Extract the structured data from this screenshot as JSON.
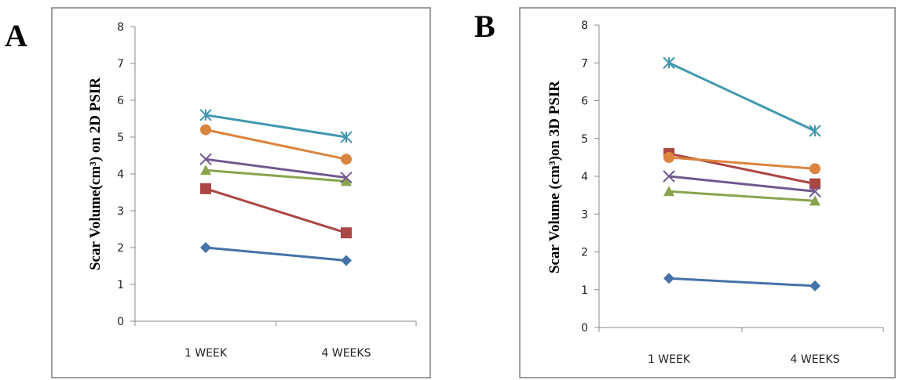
{
  "panels": [
    {
      "letter": "A"
    },
    {
      "letter": "B"
    }
  ],
  "chart_data": [
    {
      "type": "line",
      "panel": "A",
      "ylabel": "Scar Volume(cm³) on 2D PSIR",
      "categories": [
        "1 WEEK",
        "4 WEEKS"
      ],
      "ylim": [
        0,
        8
      ],
      "yticks": [
        0,
        1,
        2,
        3,
        4,
        5,
        6,
        7,
        8
      ],
      "series": [
        {
          "values": [
            2.0,
            1.65
          ],
          "color": "#4572A7",
          "marker": "diamond"
        },
        {
          "values": [
            3.6,
            2.4
          ],
          "color": "#AA4643",
          "marker": "square"
        },
        {
          "values": [
            4.1,
            3.8
          ],
          "color": "#89A54E",
          "marker": "triangle"
        },
        {
          "values": [
            4.4,
            3.9
          ],
          "color": "#71588F",
          "marker": "x"
        },
        {
          "values": [
            5.6,
            5.0
          ],
          "color": "#4198AF",
          "marker": "star"
        },
        {
          "values": [
            5.2,
            4.4
          ],
          "color": "#DB843D",
          "marker": "circle"
        }
      ]
    },
    {
      "type": "line",
      "panel": "B",
      "ylabel": "Scar Volume (cm³)on 3D PSIR",
      "categories": [
        "1 WEEK",
        "4 WEEKS"
      ],
      "ylim": [
        0,
        8
      ],
      "yticks": [
        0,
        1,
        2,
        3,
        4,
        5,
        6,
        7,
        8
      ],
      "series": [
        {
          "values": [
            1.3,
            1.1
          ],
          "color": "#4572A7",
          "marker": "diamond"
        },
        {
          "values": [
            4.6,
            3.8
          ],
          "color": "#AA4643",
          "marker": "square"
        },
        {
          "values": [
            3.6,
            3.35
          ],
          "color": "#89A54E",
          "marker": "triangle"
        },
        {
          "values": [
            4.0,
            3.6
          ],
          "color": "#71588F",
          "marker": "x"
        },
        {
          "values": [
            7.0,
            5.2
          ],
          "color": "#4198AF",
          "marker": "star"
        },
        {
          "values": [
            4.5,
            4.2
          ],
          "color": "#DB843D",
          "marker": "circle"
        }
      ]
    }
  ]
}
